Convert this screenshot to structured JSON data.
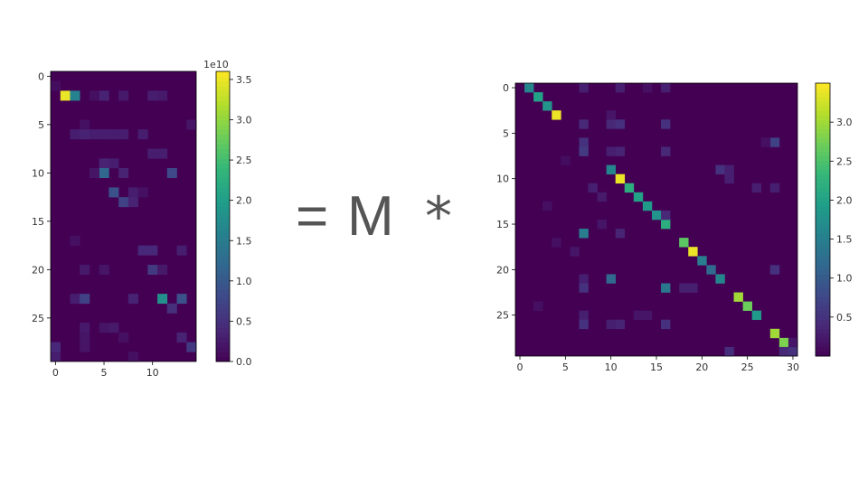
{
  "equation": {
    "equals": "=",
    "variable": "M",
    "operator": "*"
  },
  "chart_data": [
    {
      "type": "heatmap",
      "colormap": "viridis",
      "rows": 30,
      "cols": 15,
      "xticks": [
        0,
        5,
        10
      ],
      "yticks": [
        0,
        5,
        10,
        15,
        20,
        25
      ],
      "vmin": 0,
      "vmax": 3.6,
      "colorbar": {
        "ticks": [
          0.0,
          0.5,
          1.0,
          1.5,
          2.0,
          2.5,
          3.0,
          3.5
        ],
        "tick_labels": [
          "0.0",
          "0.5",
          "1.0",
          "1.5",
          "2.0",
          "2.5",
          "3.0",
          "3.5"
        ],
        "exponent": "1e10"
      },
      "cells": [
        [
          2,
          1,
          3.5
        ],
        [
          2,
          2,
          1.6
        ],
        [
          2,
          5,
          0.35
        ],
        [
          2,
          7,
          0.25
        ],
        [
          2,
          10,
          0.3
        ],
        [
          2,
          11,
          0.25
        ],
        [
          2,
          4,
          0.15
        ],
        [
          1,
          0,
          0.12
        ],
        [
          6,
          2,
          0.3
        ],
        [
          6,
          3,
          0.35
        ],
        [
          6,
          4,
          0.3
        ],
        [
          6,
          5,
          0.3
        ],
        [
          6,
          6,
          0.3
        ],
        [
          6,
          7,
          0.3
        ],
        [
          6,
          9,
          0.3
        ],
        [
          5,
          3,
          0.15
        ],
        [
          5,
          14,
          0.2
        ],
        [
          8,
          10,
          0.3
        ],
        [
          8,
          11,
          0.3
        ],
        [
          9,
          5,
          0.35
        ],
        [
          9,
          6,
          0.3
        ],
        [
          10,
          5,
          1.2
        ],
        [
          10,
          7,
          0.35
        ],
        [
          10,
          12,
          0.8
        ],
        [
          10,
          4,
          0.2
        ],
        [
          12,
          6,
          0.9
        ],
        [
          12,
          8,
          0.3
        ],
        [
          13,
          7,
          0.7
        ],
        [
          13,
          8,
          0.35
        ],
        [
          12,
          9,
          0.15
        ],
        [
          18,
          9,
          0.4
        ],
        [
          18,
          10,
          0.4
        ],
        [
          18,
          13,
          0.3
        ],
        [
          17,
          2,
          0.15
        ],
        [
          20,
          10,
          0.6
        ],
        [
          20,
          3,
          0.25
        ],
        [
          20,
          5,
          0.2
        ],
        [
          20,
          11,
          0.25
        ],
        [
          23,
          2,
          0.3
        ],
        [
          23,
          3,
          0.7
        ],
        [
          23,
          8,
          0.35
        ],
        [
          23,
          11,
          1.8
        ],
        [
          23,
          13,
          0.9
        ],
        [
          24,
          12,
          0.5
        ],
        [
          26,
          3,
          0.25
        ],
        [
          26,
          5,
          0.2
        ],
        [
          26,
          6,
          0.25
        ],
        [
          27,
          13,
          0.35
        ],
        [
          27,
          3,
          0.2
        ],
        [
          27,
          7,
          0.15
        ],
        [
          28,
          0,
          0.4
        ],
        [
          28,
          14,
          0.6
        ],
        [
          29,
          0,
          0.3
        ],
        [
          28,
          3,
          0.2
        ],
        [
          29,
          8,
          0.15
        ]
      ]
    },
    {
      "type": "heatmap",
      "colormap": "viridis",
      "rows": 30,
      "cols": 31,
      "xticks": [
        0,
        5,
        10,
        15,
        20,
        25,
        30
      ],
      "yticks": [
        0,
        5,
        10,
        15,
        20,
        25
      ],
      "vmin": 0,
      "vmax": 3.5,
      "colorbar": {
        "ticks": [
          0.5,
          1.0,
          1.5,
          2.0,
          2.5,
          3.0
        ],
        "tick_labels": [
          "0.5",
          "1.0",
          "1.5",
          "2.0",
          "2.5",
          "3.0"
        ]
      },
      "cells": [
        [
          0,
          1,
          1.6
        ],
        [
          1,
          2,
          2.0
        ],
        [
          2,
          3,
          1.8
        ],
        [
          3,
          4,
          3.4
        ],
        [
          0,
          7,
          0.3
        ],
        [
          0,
          11,
          0.3
        ],
        [
          0,
          16,
          0.3
        ],
        [
          0,
          14,
          0.15
        ],
        [
          4,
          7,
          0.4
        ],
        [
          4,
          10,
          0.4
        ],
        [
          4,
          11,
          0.5
        ],
        [
          4,
          16,
          0.5
        ],
        [
          3,
          10,
          0.2
        ],
        [
          6,
          7,
          0.5
        ],
        [
          7,
          7,
          0.6
        ],
        [
          7,
          10,
          0.3
        ],
        [
          7,
          11,
          0.35
        ],
        [
          7,
          16,
          0.4
        ],
        [
          6,
          28,
          0.7
        ],
        [
          6,
          27,
          0.15
        ],
        [
          9,
          10,
          1.6
        ],
        [
          10,
          11,
          3.4
        ],
        [
          11,
          12,
          2.2
        ],
        [
          12,
          13,
          2.0
        ],
        [
          13,
          14,
          1.9
        ],
        [
          14,
          15,
          1.8
        ],
        [
          15,
          16,
          2.2
        ],
        [
          9,
          22,
          0.5
        ],
        [
          9,
          23,
          0.3
        ],
        [
          10,
          23,
          0.3
        ],
        [
          11,
          26,
          0.3
        ],
        [
          11,
          28,
          0.3
        ],
        [
          11,
          8,
          0.3
        ],
        [
          12,
          9,
          0.25
        ],
        [
          14,
          16,
          0.4
        ],
        [
          15,
          9,
          0.2
        ],
        [
          16,
          7,
          1.5
        ],
        [
          16,
          11,
          0.35
        ],
        [
          17,
          18,
          2.6
        ],
        [
          18,
          19,
          3.4
        ],
        [
          19,
          20,
          1.5
        ],
        [
          20,
          21,
          1.2
        ],
        [
          21,
          22,
          1.6
        ],
        [
          20,
          28,
          0.5
        ],
        [
          21,
          10,
          1.2
        ],
        [
          21,
          7,
          0.3
        ],
        [
          22,
          7,
          0.5
        ],
        [
          22,
          16,
          1.4
        ],
        [
          22,
          18,
          0.3
        ],
        [
          22,
          19,
          0.3
        ],
        [
          23,
          24,
          3.0
        ],
        [
          24,
          25,
          2.7
        ],
        [
          25,
          26,
          1.9
        ],
        [
          25,
          7,
          0.3
        ],
        [
          26,
          7,
          0.5
        ],
        [
          26,
          10,
          0.3
        ],
        [
          26,
          11,
          0.35
        ],
        [
          26,
          16,
          0.5
        ],
        [
          25,
          13,
          0.2
        ],
        [
          25,
          14,
          0.2
        ],
        [
          27,
          28,
          3.0
        ],
        [
          28,
          29,
          2.8
        ],
        [
          29,
          29,
          0.4
        ],
        [
          29,
          30,
          0.5
        ],
        [
          29,
          23,
          0.45
        ],
        [
          28,
          30,
          0.2
        ],
        [
          18,
          6,
          0.2
        ],
        [
          17,
          4,
          0.15
        ],
        [
          13,
          3,
          0.15
        ],
        [
          24,
          2,
          0.15
        ],
        [
          8,
          5,
          0.12
        ]
      ]
    }
  ]
}
